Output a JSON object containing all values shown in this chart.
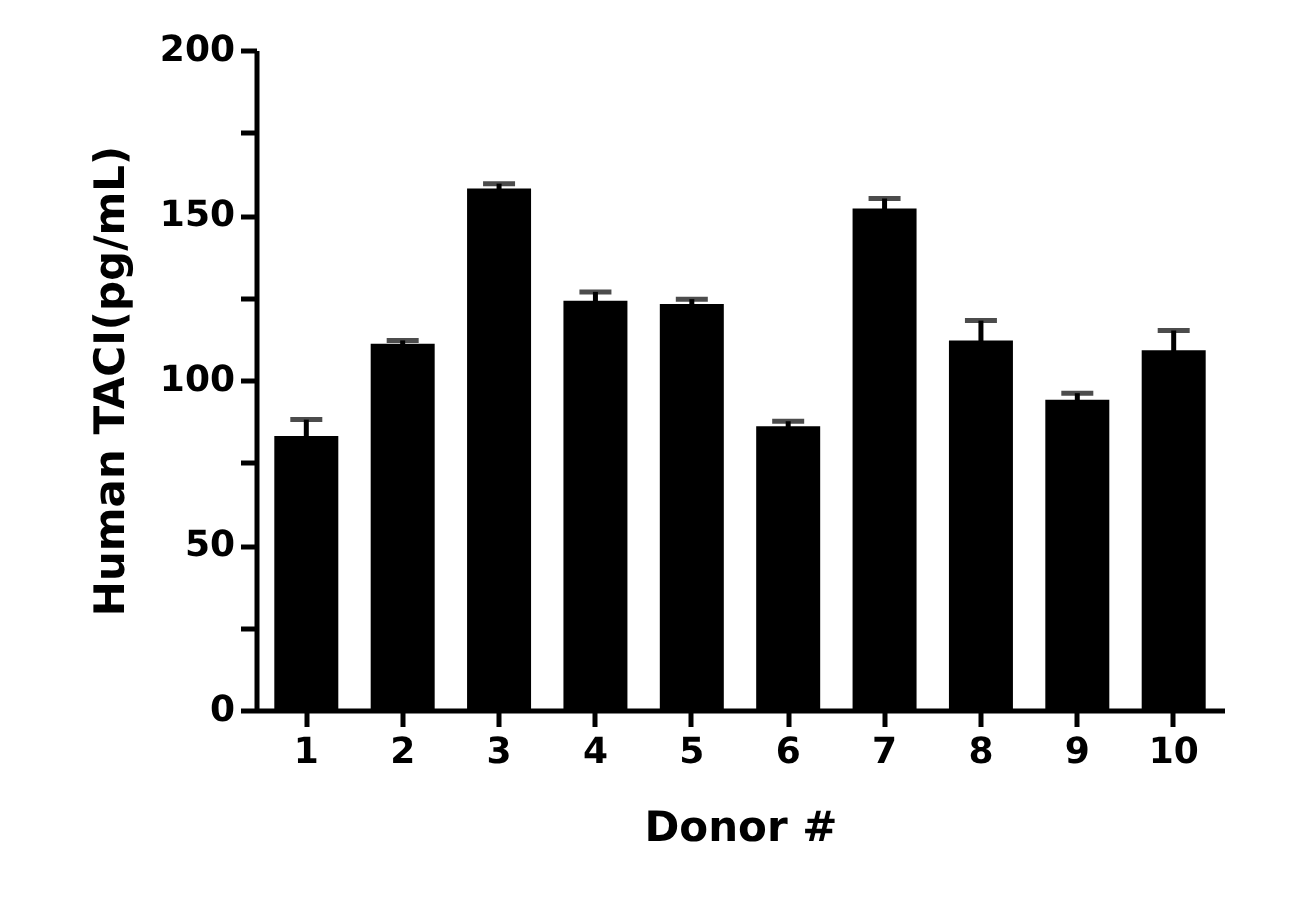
{
  "chart_data": {
    "type": "bar",
    "xlabel": "Donor #",
    "ylabel": "Human TACI(pg/mL)",
    "categories": [
      "1",
      "2",
      "3",
      "4",
      "5",
      "6",
      "7",
      "8",
      "9",
      "10"
    ],
    "values": [
      83,
      111,
      158,
      124,
      123,
      86,
      152,
      112,
      94,
      109
    ],
    "errors": [
      5,
      1,
      1.5,
      2.7,
      1.5,
      1.5,
      3,
      6,
      2,
      6
    ],
    "color": "#000000",
    "ylim": [
      0,
      200
    ],
    "yticks": [
      0,
      {
        "value": 25,
        "label": null
      },
      50,
      {
        "value": 75,
        "label": null
      },
      100,
      {
        "value": 125,
        "label": null
      },
      150,
      {
        "value": 175,
        "label": null
      },
      200
    ],
    "grid": false
  }
}
